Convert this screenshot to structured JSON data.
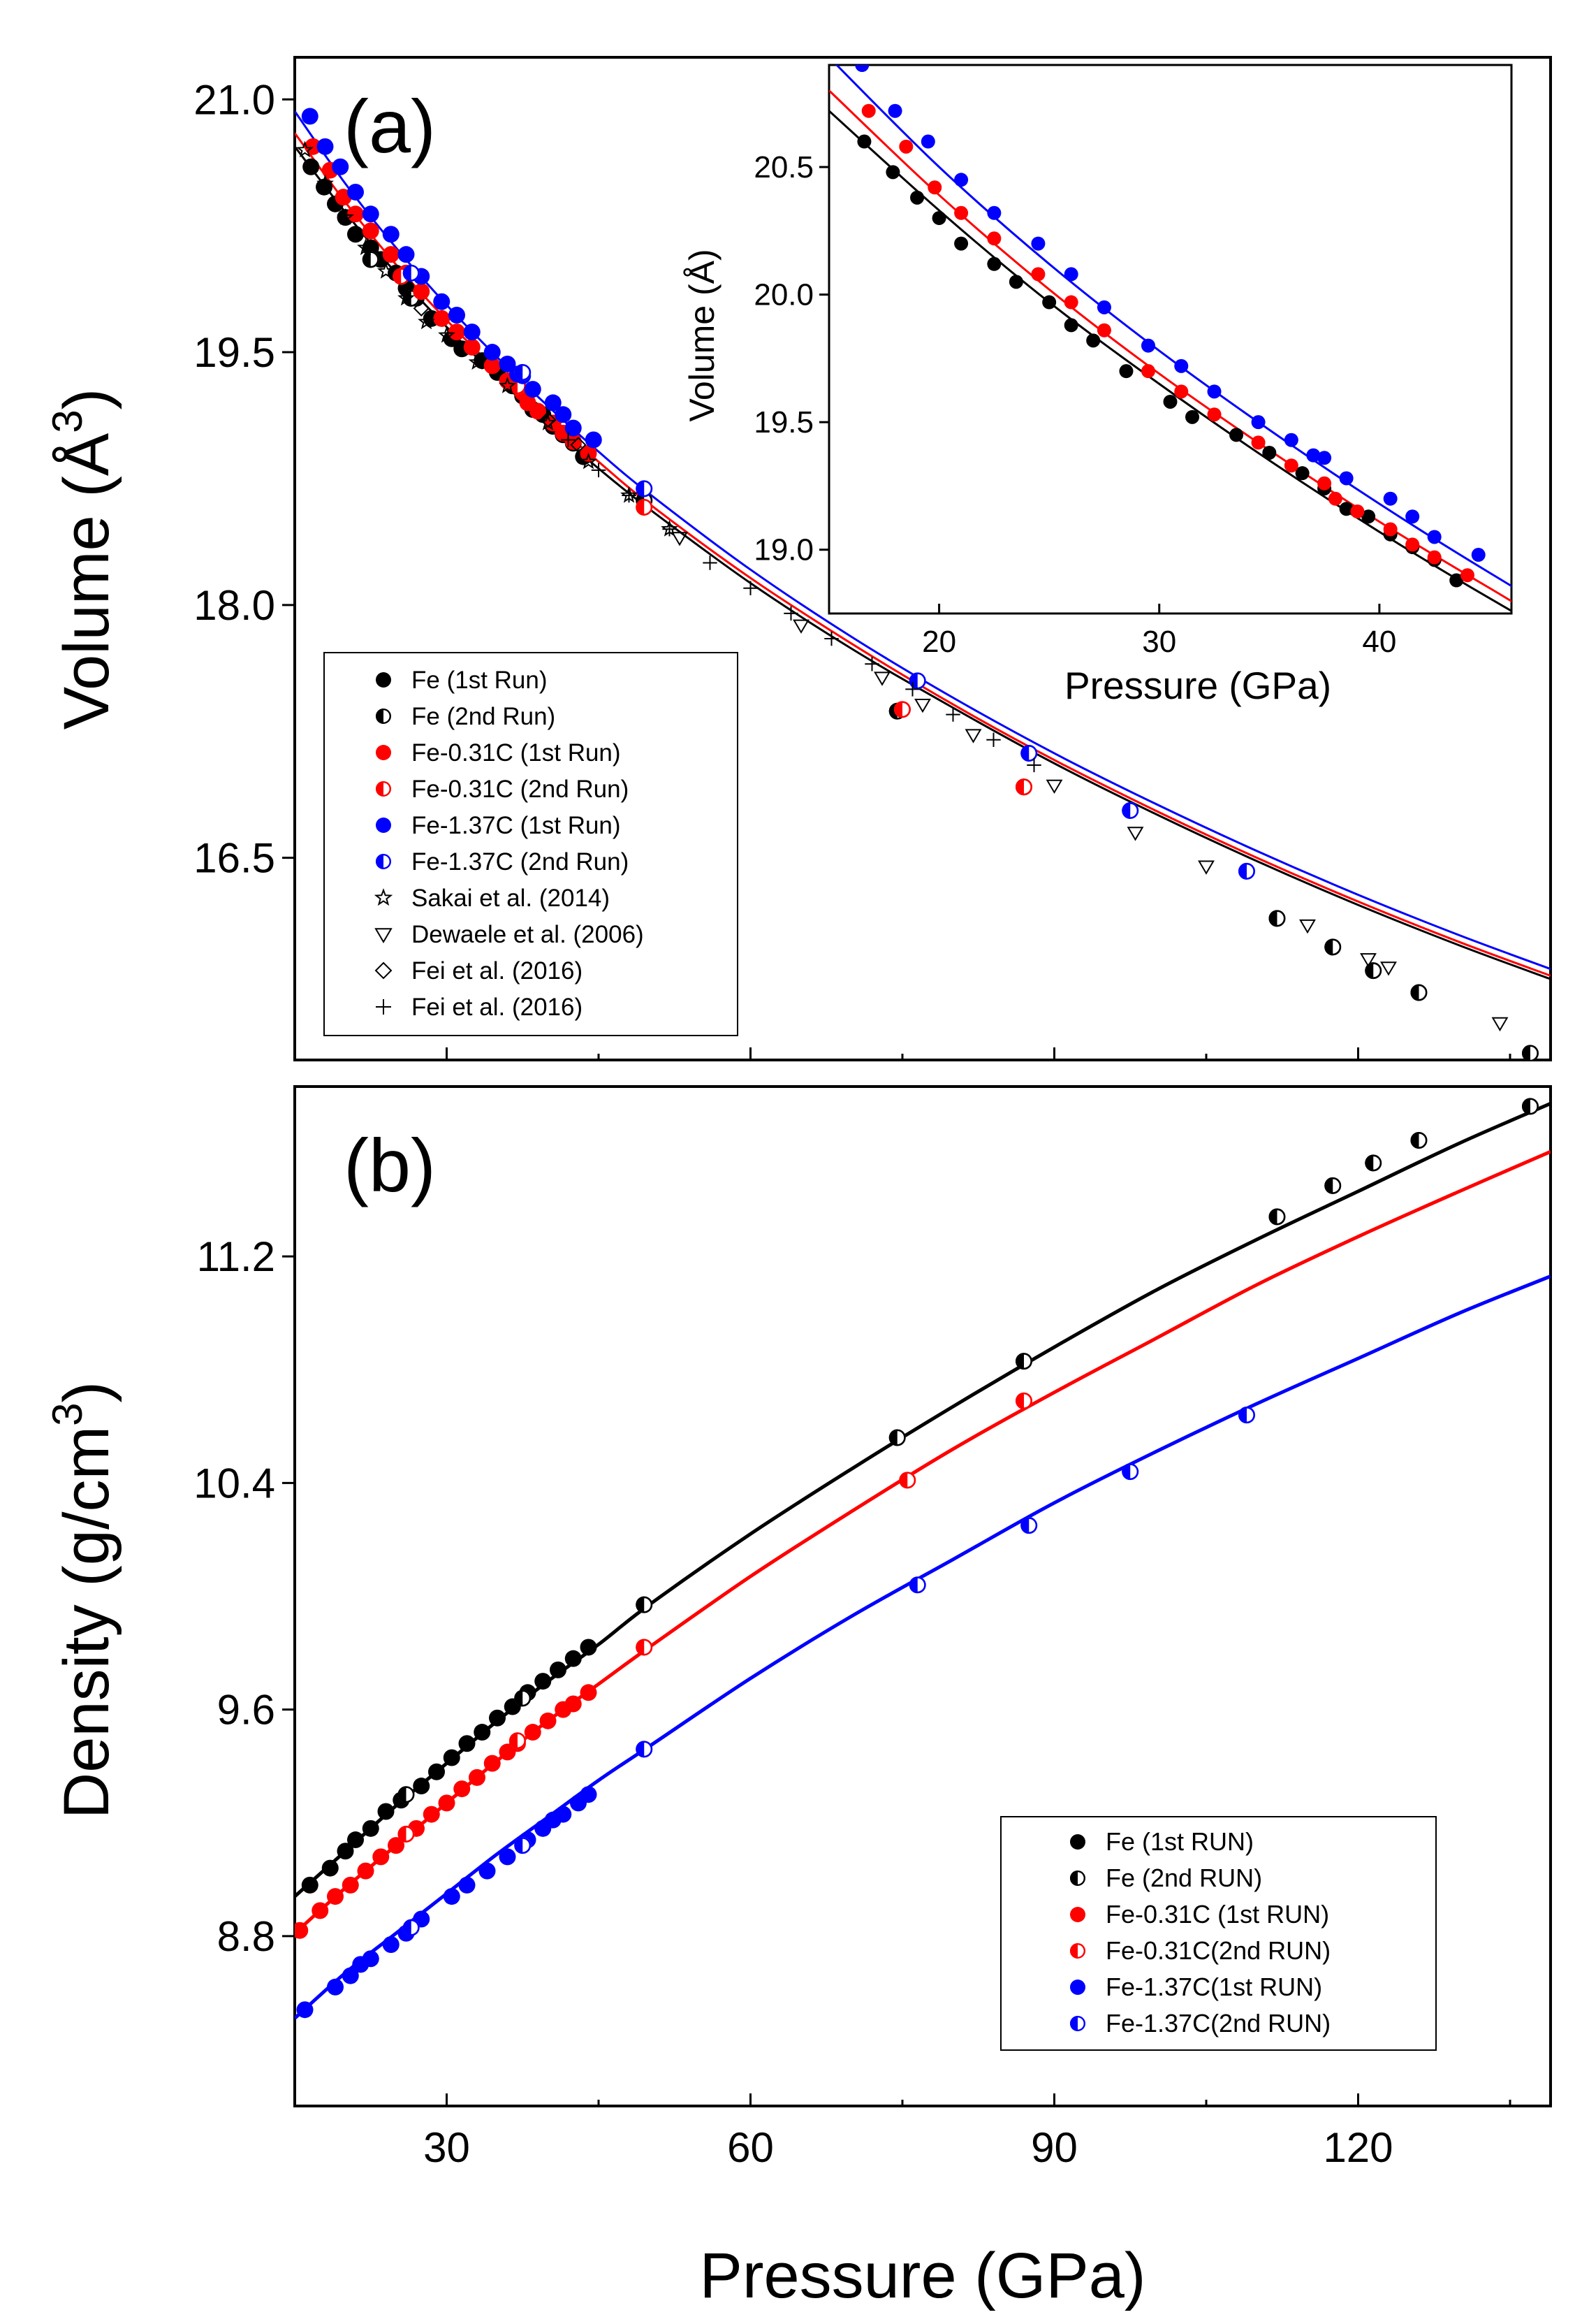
{
  "figure": {
    "panel_a_label": "(a)",
    "panel_b_label": "(b)",
    "y_label_a": "Volume (Å",
    "y_label_a_sup": "3",
    "y_label_a_close": ")",
    "y_label_b": "Density (g/cm",
    "y_label_b_sup": "3",
    "y_label_b_close": ")",
    "x_label": "Pressure (GPa)",
    "inset_x_label": "Pressure (GPa)",
    "inset_y_label": "Volume (Å)"
  },
  "colors": {
    "fe": "#000000",
    "fe031c": "#ff0000",
    "fe137c": "#0000ff"
  },
  "chart_data": [
    {
      "id": "panel-a",
      "type": "scatter",
      "title": "(a)",
      "xlabel": "Pressure (GPa)",
      "ylabel": "Volume (Å3)",
      "xlim": [
        15,
        139
      ],
      "ylim": [
        15.3,
        21.25
      ],
      "xticks": [
        30,
        60,
        90,
        120
      ],
      "yticks": [
        16.5,
        18.0,
        19.5,
        21.0
      ],
      "ytick_labels": [
        "16.5",
        "18.0",
        "19.5",
        "21.0"
      ],
      "legend_position": "bottom-left",
      "legend": [
        {
          "label": "Fe (1st Run)",
          "marker": "circle-filled",
          "color": "#000000"
        },
        {
          "label": "Fe (2nd Run)",
          "marker": "circle-half",
          "color": "#000000"
        },
        {
          "label": "Fe-0.31C (1st Run)",
          "marker": "circle-filled",
          "color": "#ff0000"
        },
        {
          "label": "Fe-0.31C (2nd Run)",
          "marker": "circle-half",
          "color": "#ff0000"
        },
        {
          "label": "Fe-1.37C (1st Run)",
          "marker": "circle-filled",
          "color": "#0000ff"
        },
        {
          "label": "Fe-1.37C (2nd Run)",
          "marker": "circle-half",
          "color": "#0000ff"
        },
        {
          "label": "Sakai et al. (2014)",
          "marker": "star",
          "color": "#000000"
        },
        {
          "label": "Dewaele et al. (2006)",
          "marker": "triangle-down",
          "color": "#000000"
        },
        {
          "label": "Fei et al. (2016)",
          "marker": "diamond",
          "color": "#000000"
        },
        {
          "label": "Fei et al. (2016)",
          "marker": "plus",
          "color": "#000000"
        }
      ],
      "fits": [
        {
          "name": "Fe",
          "color": "#000000",
          "x": [
            15,
            20,
            25,
            30,
            35,
            40,
            45,
            50,
            60,
            70,
            80,
            90,
            100,
            110,
            120,
            130,
            139
          ],
          "y": [
            20.72,
            20.33,
            19.97,
            19.65,
            19.35,
            19.07,
            18.81,
            18.57,
            18.13,
            17.74,
            17.39,
            17.06,
            16.76,
            16.48,
            16.22,
            15.98,
            15.78
          ]
        },
        {
          "name": "Fe-0.31C",
          "color": "#ff0000",
          "x": [
            15,
            20,
            25,
            30,
            35,
            40,
            45,
            50,
            60,
            70,
            80,
            90,
            100,
            110,
            120,
            130,
            139
          ],
          "y": [
            20.8,
            20.39,
            20.02,
            19.69,
            19.39,
            19.11,
            18.85,
            18.6,
            18.16,
            17.77,
            17.41,
            17.08,
            16.78,
            16.5,
            16.24,
            16.0,
            15.8
          ]
        },
        {
          "name": "Fe-1.37C",
          "color": "#0000ff",
          "x": [
            15,
            20,
            25,
            30,
            35,
            40,
            45,
            50,
            60,
            70,
            80,
            90,
            100,
            110,
            120,
            130,
            139
          ],
          "y": [
            20.93,
            20.5,
            20.12,
            19.78,
            19.47,
            19.18,
            18.91,
            18.66,
            18.21,
            17.81,
            17.45,
            17.12,
            16.82,
            16.54,
            16.28,
            16.04,
            15.84
          ]
        }
      ],
      "series": [
        {
          "name": "Fe (1st Run)",
          "marker": "circle-filled",
          "color": "#000000",
          "x": [
            16.6,
            17.9,
            19.0,
            20.0,
            21.0,
            22.5,
            23.5,
            25.0,
            26.0,
            27.0,
            28.5,
            30.5,
            31.5,
            33.5,
            35.0,
            36.5,
            37.5,
            38.5,
            39.5,
            40.5,
            41.5,
            42.5,
            43.5
          ],
          "y": [
            20.6,
            20.48,
            20.38,
            20.3,
            20.2,
            20.12,
            20.05,
            19.97,
            19.88,
            19.82,
            19.7,
            19.58,
            19.52,
            19.45,
            19.38,
            19.3,
            19.24,
            19.16,
            19.13,
            19.06,
            19.01,
            18.96,
            18.88
          ]
        },
        {
          "name": "Fe (2nd Run)",
          "marker": "circle-half",
          "color": "#000000",
          "x": [
            22.5,
            26.5,
            49.5,
            74.5,
            87.0,
            112.0,
            117.5,
            121.5,
            126.0,
            137.0
          ],
          "y": [
            20.05,
            19.82,
            18.62,
            17.37,
            16.92,
            16.14,
            15.97,
            15.83,
            15.7,
            15.34
          ]
        },
        {
          "name": "Fe-0.31C (1st Run)",
          "marker": "circle-filled",
          "color": "#ff0000",
          "x": [
            16.8,
            18.5,
            19.8,
            21.0,
            22.5,
            24.5,
            26.0,
            27.5,
            29.5,
            31.0,
            32.5,
            34.5,
            36.0,
            37.5,
            38.0,
            39.0,
            40.5,
            41.5,
            42.5,
            44.0
          ],
          "y": [
            20.72,
            20.58,
            20.42,
            20.32,
            20.22,
            20.08,
            19.97,
            19.86,
            19.7,
            19.62,
            19.53,
            19.42,
            19.33,
            19.26,
            19.2,
            19.15,
            19.08,
            19.02,
            18.97,
            18.9
          ]
        },
        {
          "name": "Fe-0.31C (2nd Run)",
          "marker": "circle-half",
          "color": "#ff0000",
          "x": [
            25.5,
            37.0,
            49.5,
            75.0,
            87.0
          ],
          "y": [
            19.95,
            19.3,
            18.58,
            17.38,
            16.92
          ]
        },
        {
          "name": "Fe-1.37C (1st Run)",
          "marker": "circle-filled",
          "color": "#0000ff",
          "x": [
            16.5,
            18.0,
            19.5,
            21.0,
            22.5,
            24.5,
            26.0,
            27.5,
            29.5,
            31.0,
            32.5,
            34.5,
            36.0,
            37.0,
            37.5,
            38.5,
            40.5,
            41.5,
            42.5,
            44.5
          ],
          "y": [
            20.9,
            20.72,
            20.6,
            20.45,
            20.32,
            20.2,
            20.08,
            19.95,
            19.8,
            19.72,
            19.62,
            19.5,
            19.43,
            19.37,
            19.36,
            19.28,
            19.2,
            19.13,
            19.05,
            18.98
          ]
        },
        {
          "name": "Fe-1.37C (2nd Run)",
          "marker": "circle-half",
          "color": "#0000ff",
          "x": [
            26.5,
            37.5,
            49.5,
            76.5,
            87.5,
            97.5,
            109.0
          ],
          "y": [
            19.97,
            19.38,
            18.69,
            17.55,
            17.12,
            16.78,
            16.42
          ]
        },
        {
          "name": "Sakai et al. (2014)",
          "marker": "star",
          "color": "#000000",
          "x": [
            16,
            18,
            20,
            22,
            24,
            26,
            28,
            30,
            33,
            36,
            40,
            44,
            48,
            52
          ],
          "y": [
            20.7,
            20.5,
            20.3,
            20.12,
            19.98,
            19.82,
            19.68,
            19.6,
            19.44,
            19.3,
            19.08,
            18.85,
            18.65,
            18.45
          ]
        },
        {
          "name": "Dewaele et al. (2006)",
          "marker": "triangle-down",
          "color": "#000000",
          "x": [
            53,
            65,
            73,
            77,
            82,
            90,
            98,
            105,
            115,
            121,
            123,
            134
          ],
          "y": [
            18.4,
            17.88,
            17.57,
            17.41,
            17.23,
            16.93,
            16.65,
            16.45,
            16.1,
            15.9,
            15.85,
            15.52
          ]
        },
        {
          "name": "Fei et al. (2016) diamond",
          "marker": "diamond",
          "color": "#000000",
          "x": [
            27.5,
            40,
            43
          ],
          "y": [
            19.76,
            19.1,
            18.95
          ]
        },
        {
          "name": "Fei et al. (2016) plus",
          "marker": "plus",
          "color": "#000000",
          "x": [
            42,
            45,
            48,
            52,
            56,
            60,
            64,
            68,
            72,
            76,
            80,
            84,
            88
          ],
          "y": [
            18.98,
            18.8,
            18.65,
            18.45,
            18.25,
            18.1,
            17.95,
            17.8,
            17.65,
            17.5,
            17.35,
            17.2,
            17.05
          ]
        }
      ],
      "inset": {
        "xlabel": "Pressure (GPa)",
        "ylabel": "Volume (Å)",
        "xlim": [
          15,
          46
        ],
        "ylim": [
          18.75,
          20.9
        ],
        "xticks": [
          20,
          30,
          40
        ],
        "yticks": [
          19.0,
          19.5,
          20.0,
          20.5
        ],
        "ytick_labels": [
          "19.0",
          "19.5",
          "20.0",
          "20.5"
        ]
      }
    },
    {
      "id": "panel-b",
      "type": "scatter",
      "title": "(b)",
      "xlabel": "Pressure (GPa)",
      "ylabel": "Density (g/cm3)",
      "xlim": [
        15,
        139
      ],
      "ylim": [
        8.2,
        11.8
      ],
      "xticks": [
        30,
        60,
        90,
        120
      ],
      "yticks": [
        8.8,
        9.6,
        10.4,
        11.2
      ],
      "ytick_labels": [
        "8.8",
        "9.6",
        "10.4",
        "11.2"
      ],
      "legend_position": "bottom-right",
      "legend": [
        {
          "label": "Fe (1st RUN)",
          "marker": "circle-filled",
          "color": "#000000"
        },
        {
          "label": "Fe (2nd RUN)",
          "marker": "circle-half",
          "color": "#000000"
        },
        {
          "label": "Fe-0.31C (1st RUN)",
          "marker": "circle-filled",
          "color": "#ff0000"
        },
        {
          "label": "Fe-0.31C(2nd RUN)",
          "marker": "circle-half",
          "color": "#ff0000"
        },
        {
          "label": "Fe-1.37C(1st RUN)",
          "marker": "circle-filled",
          "color": "#0000ff"
        },
        {
          "label": "Fe-1.37C(2nd RUN)",
          "marker": "circle-half",
          "color": "#0000ff"
        }
      ],
      "fits": [
        {
          "name": "Fe",
          "color": "#000000",
          "x": [
            15,
            20,
            25,
            30,
            35,
            40,
            45,
            50,
            60,
            70,
            80,
            90,
            100,
            110,
            120,
            130,
            139
          ],
          "y": [
            8.94,
            9.1,
            9.26,
            9.41,
            9.56,
            9.7,
            9.83,
            9.97,
            10.22,
            10.45,
            10.67,
            10.88,
            11.08,
            11.26,
            11.43,
            11.6,
            11.74
          ]
        },
        {
          "name": "Fe-0.31C",
          "color": "#ff0000",
          "x": [
            15,
            20,
            25,
            30,
            35,
            40,
            45,
            50,
            60,
            70,
            80,
            90,
            100,
            110,
            120,
            130,
            139
          ],
          "y": [
            8.81,
            8.97,
            9.12,
            9.27,
            9.42,
            9.56,
            9.69,
            9.82,
            10.07,
            10.3,
            10.52,
            10.72,
            10.91,
            11.1,
            11.27,
            11.43,
            11.57
          ]
        },
        {
          "name": "Fe-1.37C",
          "color": "#0000ff",
          "x": [
            15,
            20,
            25,
            30,
            35,
            40,
            45,
            50,
            60,
            70,
            80,
            90,
            100,
            110,
            120,
            130,
            139
          ],
          "y": [
            8.51,
            8.67,
            8.81,
            8.95,
            9.09,
            9.22,
            9.35,
            9.47,
            9.71,
            9.93,
            10.13,
            10.33,
            10.51,
            10.68,
            10.84,
            11.0,
            11.13
          ]
        }
      ],
      "series": [
        {
          "name": "Fe (1st RUN)",
          "marker": "circle-filled",
          "color": "#000000",
          "x": [
            16.5,
            18.5,
            20.0,
            21.0,
            22.5,
            24.0,
            25.5,
            27.5,
            29.0,
            30.5,
            32.0,
            33.5,
            35.0,
            36.5,
            38.0,
            39.5,
            41.0,
            42.5,
            44.0
          ],
          "y": [
            8.98,
            9.04,
            9.1,
            9.14,
            9.18,
            9.24,
            9.28,
            9.33,
            9.38,
            9.43,
            9.48,
            9.52,
            9.57,
            9.61,
            9.66,
            9.7,
            9.74,
            9.78,
            9.82
          ]
        },
        {
          "name": "Fe (2nd RUN)",
          "marker": "circle-half",
          "color": "#000000",
          "x": [
            26.0,
            37.5,
            49.5,
            74.5,
            87.0,
            112.0,
            117.5,
            121.5,
            126.0,
            137.0
          ],
          "y": [
            9.3,
            9.64,
            9.97,
            10.56,
            10.83,
            11.34,
            11.45,
            11.53,
            11.61,
            11.73
          ]
        },
        {
          "name": "Fe-0.31C (1st RUN)",
          "marker": "circle-filled",
          "color": "#ff0000",
          "x": [
            15.5,
            17.5,
            19.0,
            20.5,
            22.0,
            23.5,
            25.0,
            27.0,
            28.5,
            30.0,
            31.5,
            33.0,
            34.5,
            36.0,
            37.0,
            38.5,
            40.0,
            41.5,
            42.5,
            44.0
          ],
          "y": [
            8.82,
            8.89,
            8.94,
            8.98,
            9.03,
            9.08,
            9.12,
            9.18,
            9.23,
            9.27,
            9.32,
            9.36,
            9.41,
            9.45,
            9.48,
            9.52,
            9.56,
            9.6,
            9.62,
            9.66
          ]
        },
        {
          "name": "Fe-0.31C(2nd RUN)",
          "marker": "circle-half",
          "color": "#ff0000",
          "x": [
            26.0,
            37.0,
            49.5,
            75.5,
            87.0
          ],
          "y": [
            9.16,
            9.49,
            9.82,
            10.41,
            10.69
          ]
        },
        {
          "name": "Fe-1.37C(1st RUN)",
          "marker": "circle-filled",
          "color": "#0000ff",
          "x": [
            16.0,
            19.0,
            20.5,
            21.5,
            22.5,
            24.5,
            26.0,
            27.5,
            30.5,
            32.0,
            34.0,
            36.0,
            38.0,
            39.5,
            40.5,
            41.5,
            43.0,
            44.0
          ],
          "y": [
            8.54,
            8.62,
            8.66,
            8.7,
            8.72,
            8.77,
            8.81,
            8.86,
            8.94,
            8.98,
            9.03,
            9.08,
            9.14,
            9.18,
            9.21,
            9.23,
            9.27,
            9.3
          ]
        },
        {
          "name": "Fe-1.37C(2nd RUN)",
          "marker": "circle-half",
          "color": "#0000ff",
          "x": [
            26.5,
            37.5,
            49.5,
            76.5,
            87.5,
            97.5,
            109.0
          ],
          "y": [
            8.83,
            9.12,
            9.46,
            10.04,
            10.25,
            10.44,
            10.64
          ]
        }
      ]
    }
  ]
}
